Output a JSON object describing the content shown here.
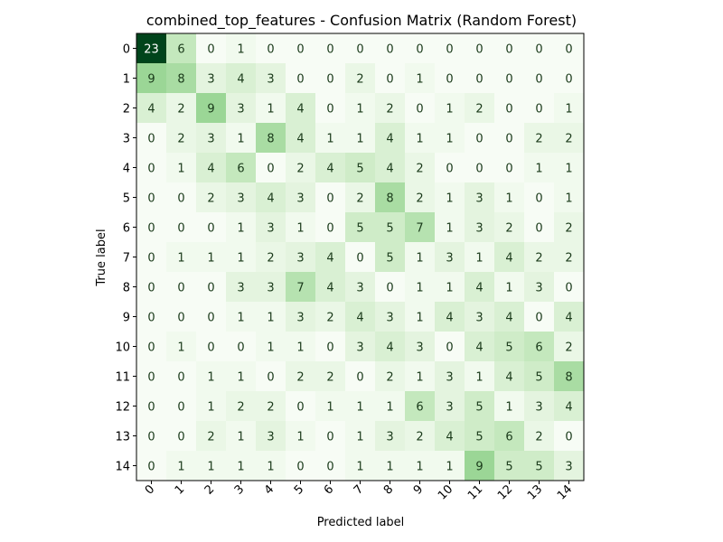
{
  "chart_data": {
    "type": "heatmap",
    "title": "combined_top_features - Confusion Matrix (Random Forest)",
    "xlabel": "Predicted label",
    "ylabel": "True label",
    "x_categories": [
      "0",
      "1",
      "2",
      "3",
      "4",
      "5",
      "6",
      "7",
      "8",
      "9",
      "10",
      "11",
      "12",
      "13",
      "14"
    ],
    "y_categories": [
      "0",
      "1",
      "2",
      "3",
      "4",
      "5",
      "6",
      "7",
      "8",
      "9",
      "10",
      "11",
      "12",
      "13",
      "14"
    ],
    "values": [
      [
        23,
        6,
        0,
        1,
        0,
        0,
        0,
        0,
        0,
        0,
        0,
        0,
        0,
        0,
        0
      ],
      [
        9,
        8,
        3,
        4,
        3,
        0,
        0,
        2,
        0,
        1,
        0,
        0,
        0,
        0,
        0
      ],
      [
        4,
        2,
        9,
        3,
        1,
        4,
        0,
        1,
        2,
        0,
        1,
        2,
        0,
        0,
        1
      ],
      [
        0,
        2,
        3,
        1,
        8,
        4,
        1,
        1,
        4,
        1,
        1,
        0,
        0,
        2,
        2
      ],
      [
        0,
        1,
        4,
        6,
        0,
        2,
        4,
        5,
        4,
        2,
        0,
        0,
        0,
        1,
        1
      ],
      [
        0,
        0,
        2,
        3,
        4,
        3,
        0,
        2,
        8,
        2,
        1,
        3,
        1,
        0,
        1
      ],
      [
        0,
        0,
        0,
        1,
        3,
        1,
        0,
        5,
        5,
        7,
        1,
        3,
        2,
        0,
        2
      ],
      [
        0,
        1,
        1,
        1,
        2,
        3,
        4,
        0,
        5,
        1,
        3,
        1,
        4,
        2,
        2
      ],
      [
        0,
        0,
        0,
        3,
        3,
        7,
        4,
        3,
        0,
        1,
        1,
        4,
        1,
        3,
        0
      ],
      [
        0,
        0,
        0,
        1,
        1,
        3,
        2,
        4,
        3,
        1,
        4,
        3,
        4,
        0,
        4
      ],
      [
        0,
        1,
        0,
        0,
        1,
        1,
        0,
        3,
        4,
        3,
        0,
        4,
        5,
        6,
        2
      ],
      [
        0,
        0,
        1,
        1,
        0,
        2,
        2,
        0,
        2,
        1,
        3,
        1,
        4,
        5,
        8
      ],
      [
        0,
        0,
        1,
        2,
        2,
        0,
        1,
        1,
        1,
        6,
        3,
        5,
        1,
        3,
        4
      ],
      [
        0,
        0,
        2,
        1,
        3,
        1,
        0,
        1,
        3,
        2,
        4,
        5,
        6,
        2,
        0
      ],
      [
        0,
        1,
        1,
        1,
        1,
        0,
        0,
        1,
        1,
        1,
        1,
        9,
        5,
        5,
        3
      ]
    ],
    "colormap": "Greens",
    "vmin": 0,
    "vmax": 23,
    "colors": {
      "low": "#f7fcf5",
      "high": "#00441b"
    }
  }
}
